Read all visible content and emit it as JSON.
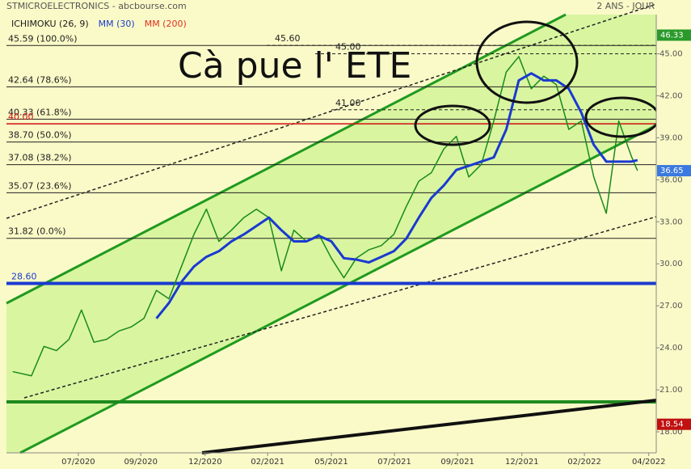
{
  "chart_data": {
    "type": "line",
    "source": "STMICROELECTRONICS - abcbourse.com",
    "period": "2 ANS - JOUR",
    "annotation": "Cà pue l' ETE",
    "indicators": [
      {
        "name": "ICHIMOKU (26, 9)",
        "color": "#1a1a1a"
      },
      {
        "name": "MM (200)",
        "color": "#e03020"
      }
    ],
    "price_color": "#1a8a1a",
    "x": [
      1,
      4,
      6,
      8,
      10,
      12,
      14,
      16,
      18,
      20,
      22,
      24,
      26,
      28,
      30,
      32,
      34,
      36,
      38,
      40,
      42,
      44,
      46,
      48,
      50,
      52,
      54,
      56,
      58,
      60,
      62,
      64,
      66,
      68,
      70,
      72,
      74,
      76,
      78,
      80,
      82,
      84,
      86,
      88,
      90,
      92,
      94,
      96,
      98,
      100,
      101
    ],
    "values": [
      22.3,
      22.0,
      24.1,
      23.8,
      24.6,
      26.7,
      24.4,
      24.6,
      25.2,
      25.5,
      26.1,
      28.1,
      27.5,
      29.8,
      32.1,
      33.9,
      31.6,
      32.4,
      33.3,
      33.9,
      33.3,
      29.5,
      32.4,
      31.6,
      32.1,
      30.4,
      29.0,
      30.4,
      31.0,
      31.3,
      32.1,
      34.1,
      35.9,
      36.5,
      38.2,
      39.1,
      36.2,
      37.1,
      40.2,
      43.7,
      44.8,
      42.5,
      43.4,
      42.8,
      39.6,
      40.2,
      36.2,
      33.6,
      40.2,
      37.7,
      36.65
    ],
    "series": [
      {
        "name": "MM (30)",
        "color": "#1a3ad0",
        "values": [
          null,
          null,
          null,
          null,
          null,
          null,
          null,
          null,
          null,
          null,
          null,
          26.1,
          27.2,
          28.7,
          29.8,
          30.5,
          30.9,
          31.6,
          32.1,
          32.7,
          33.3,
          32.4,
          31.6,
          31.6,
          32.0,
          31.6,
          30.4,
          30.3,
          30.1,
          30.5,
          30.9,
          31.8,
          33.3,
          34.7,
          35.6,
          36.7,
          37.0,
          37.3,
          37.6,
          39.6,
          43.1,
          43.6,
          43.1,
          43.1,
          42.5,
          40.8,
          38.5,
          37.3,
          37.3,
          37.3,
          37.4
        ]
      }
    ],
    "levels": [
      {
        "value": 45.59,
        "label": "45.59 (100.0%)",
        "color": "#222222"
      },
      {
        "value": 42.64,
        "label": "42.64 (78.6%)",
        "color": "#222222"
      },
      {
        "value": 40.33,
        "label": "40.33 (61.8%)",
        "color": "#222222"
      },
      {
        "value": 38.7,
        "label": "38.70 (50.0%)",
        "color": "#222222"
      },
      {
        "value": 37.08,
        "label": "37.08 (38.2%)",
        "color": "#222222"
      },
      {
        "value": 35.07,
        "label": "35.07 (23.6%)",
        "color": "#222222"
      },
      {
        "value": 31.82,
        "label": "31.82 (0.0%)",
        "color": "#222222"
      },
      {
        "value": 40,
        "label": "40.00",
        "color": "#d01010"
      },
      {
        "value": 28.6,
        "label": "28.60",
        "color": "#1a3ad0"
      },
      {
        "value": 45.6,
        "label": "45.60",
        "color": "#222222",
        "dashed": true
      },
      {
        "value": 45,
        "label": "45.00",
        "color": "#222222",
        "dashed": true
      },
      {
        "value": 41,
        "label": "41.00",
        "color": "#222222",
        "dashed": true
      }
    ],
    "price_tags": [
      {
        "value": 46.33,
        "color": "#2a9a2a"
      },
      {
        "value": 36.65,
        "color": "#3a7ae0"
      },
      {
        "value": 18.54,
        "color": "#c01010"
      }
    ],
    "xlim": [
      0,
      104
    ],
    "xticks": [
      {
        "value": 11.5,
        "label": "07/2020"
      },
      {
        "value": 21.5,
        "label": "09/2020"
      },
      {
        "value": 31.8,
        "label": "12/2020"
      },
      {
        "value": 41.8,
        "label": "02/2021"
      },
      {
        "value": 52,
        "label": "05/2021"
      },
      {
        "value": 62.1,
        "label": "07/2021"
      },
      {
        "value": 72.2,
        "label": "09/2021"
      },
      {
        "value": 82.5,
        "label": "12/2021"
      },
      {
        "value": 92.5,
        "label": "02/2022"
      },
      {
        "value": 102.8,
        "label": "04/2022"
      }
    ],
    "ylim": [
      16.5,
      47.8
    ],
    "yticks": [
      {
        "value": 45,
        "label": "45.00"
      },
      {
        "value": 42,
        "label": "42.00"
      },
      {
        "value": 39,
        "label": "39.00"
      },
      {
        "value": 36,
        "label": "36.00"
      },
      {
        "value": 33,
        "label": "33.00"
      },
      {
        "value": 30,
        "label": "30.00"
      },
      {
        "value": 27,
        "label": "27.00"
      },
      {
        "value": 24,
        "label": "24.00"
      },
      {
        "value": 21,
        "label": "21.00"
      },
      {
        "value": 18,
        "label": "18.00"
      }
    ]
  }
}
